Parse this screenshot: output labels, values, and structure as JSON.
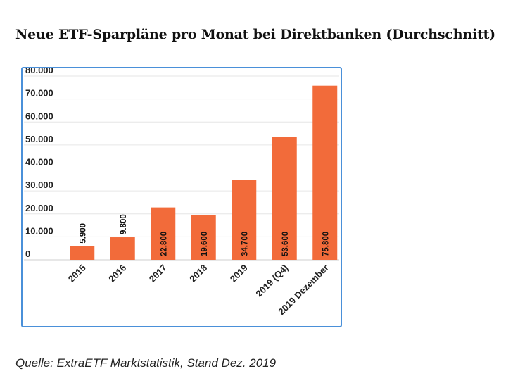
{
  "title": "Neue ETF-Sparpläne pro Monat bei Direktbanken (Durchschnitt)",
  "source": "Quelle: ExtraETF Marktstatistik, Stand Dez. 2019",
  "colors": {
    "bar": "#f26b3a",
    "grid": "#e6e6e6",
    "border": "#4a90d9",
    "text": "#222222"
  },
  "chart_data": {
    "type": "bar",
    "title": "Neue ETF-Sparpläne pro Monat bei Direktbanken (Durchschnitt)",
    "xlabel": "",
    "ylabel": "",
    "categories": [
      "2015",
      "2016",
      "2017",
      "2018",
      "2019",
      "2019 (Q4)",
      "2019 Dezember"
    ],
    "values": [
      5900,
      9800,
      22800,
      19600,
      34700,
      53600,
      75800
    ],
    "value_labels": [
      "5.900",
      "9.800",
      "22.800",
      "19.600",
      "34.700",
      "53.600",
      "75.800"
    ],
    "ylim": [
      0,
      80000
    ],
    "yticks": [
      0,
      10000,
      20000,
      30000,
      40000,
      50000,
      60000,
      70000,
      80000
    ],
    "ytick_labels": [
      "0",
      "10.000",
      "20.000",
      "30.000",
      "40.000",
      "50.000",
      "60.000",
      "70.000",
      "80.000"
    ],
    "grid": true,
    "legend": "none"
  }
}
